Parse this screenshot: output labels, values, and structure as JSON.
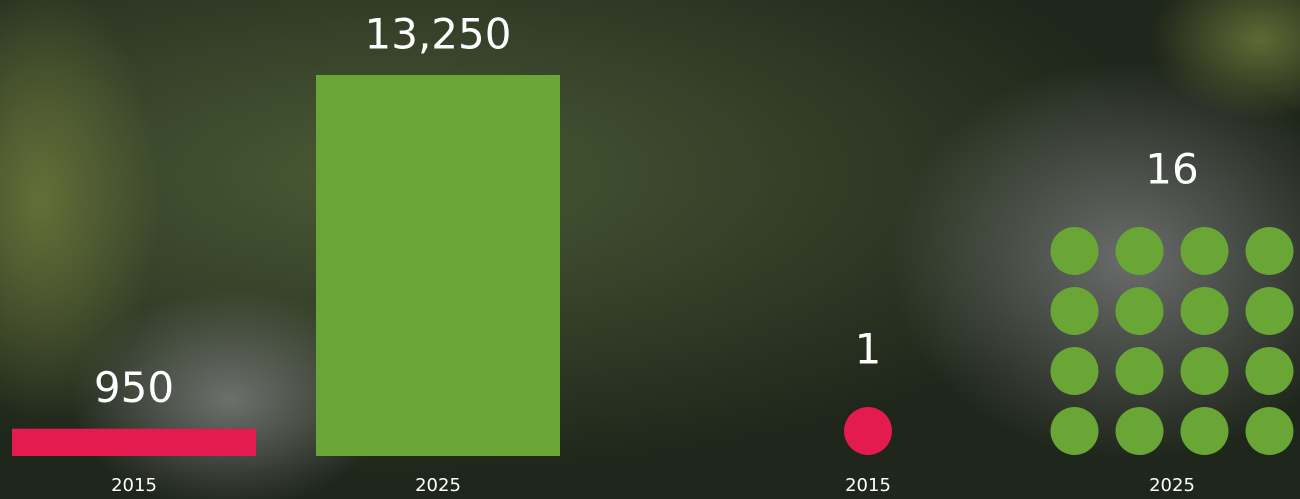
{
  "chart_data": [
    {
      "type": "bar",
      "categories": [
        "2015",
        "2025"
      ],
      "values": [
        950,
        13250
      ],
      "value_labels": [
        "950",
        "13,250"
      ],
      "colors": [
        "#e31b4f",
        "#6aa636"
      ]
    },
    {
      "type": "dots",
      "categories": [
        "2015",
        "2025"
      ],
      "values": [
        1,
        16
      ],
      "value_labels": [
        "1",
        "16"
      ],
      "colors": [
        "#e31b4f",
        "#6aa636"
      ]
    }
  ]
}
